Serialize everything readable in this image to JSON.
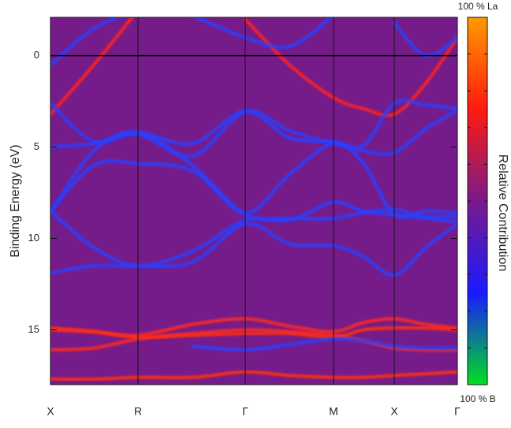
{
  "chart_data": {
    "type": "band-structure",
    "ylabel": "Binding Energy (eV)",
    "colorbar_label": "Relative Contribution",
    "colorbar_top_label": "100 % La",
    "colorbar_bottom_label": "100 % B",
    "colorbar_colors": [
      "#ff9a00",
      "#ff1a10",
      "#7a1a8a",
      "#1a1aff",
      "#00e020"
    ],
    "background": "#761c8a",
    "y_inverted": true,
    "ylim": [
      -2.1,
      18
    ],
    "yticks": [
      0,
      5,
      10,
      15
    ],
    "zero_line": true,
    "grid": "x",
    "xlim": [
      0,
      5.16
    ],
    "xticks": [
      {
        "value": 0,
        "label": "X"
      },
      {
        "value": 1.11,
        "label": "R"
      },
      {
        "value": 2.47,
        "label": "Γ"
      },
      {
        "value": 3.59,
        "label": "M"
      },
      {
        "value": 4.36,
        "label": "X"
      },
      {
        "value": 5.16,
        "label": "Γ"
      }
    ],
    "x": [
      0,
      0.55,
      1.11,
      1.8,
      2.47,
      3.03,
      3.59,
      3.97,
      4.36,
      4.76,
      5.16
    ],
    "series": [
      {
        "color": "#ff3010",
        "values": [
          17.7,
          17.7,
          17.6,
          17.6,
          17.3,
          17.5,
          17.6,
          17.6,
          17.5,
          17.4,
          17.3
        ]
      },
      {
        "color": "#ff3010",
        "values": [
          14.9,
          15.1,
          15.4,
          15.3,
          15.2,
          15.2,
          15.4,
          15.0,
          14.9,
          14.9,
          15.0
        ]
      },
      {
        "color": "#ff2a20",
        "values": [
          16.1,
          16.0,
          15.5,
          15.2,
          15.0,
          15.1,
          15.3,
          15.6,
          16.0,
          16.1,
          16.1
        ]
      },
      {
        "color": "#ff2a20",
        "values": [
          15.0,
          15.1,
          15.3,
          14.7,
          14.4,
          14.8,
          15.1,
          14.6,
          14.4,
          14.7,
          14.9
        ]
      },
      {
        "color": "#2a40ff",
        "values": [
          null,
          null,
          null,
          15.9,
          16.1,
          15.8,
          15.5,
          15.6,
          15.9,
          16.0,
          16.0
        ]
      },
      {
        "color": "#ff2020",
        "values": [
          3.2,
          0.5,
          -2.5,
          null,
          null,
          null,
          null,
          null,
          null,
          null,
          null
        ]
      },
      {
        "color": "#ff2020",
        "values": [
          null,
          null,
          null,
          null,
          -2.0,
          0.5,
          2.3,
          2.9,
          3.2,
          1.5,
          -1.0
        ]
      },
      {
        "color": "#2a40ff",
        "values": [
          2.6,
          4.7,
          4.2,
          4.8,
          3.0,
          4.1,
          4.8,
          5.2,
          5.3,
          4.0,
          3.0
        ]
      },
      {
        "color": "#2a40ff",
        "values": [
          5.0,
          4.8,
          4.3,
          5.5,
          3.1,
          4.5,
          4.7,
          4.9,
          2.6,
          2.7,
          2.9
        ]
      },
      {
        "color": "#2a40ff",
        "values": [
          8.5,
          6.0,
          5.9,
          6.3,
          8.6,
          6.5,
          4.8,
          5.9,
          8.7,
          8.5,
          8.6
        ]
      },
      {
        "color": "#2a40ff",
        "values": [
          8.5,
          10.5,
          11.5,
          10.7,
          9.0,
          9.0,
          8.0,
          8.5,
          8.4,
          8.8,
          8.8
        ]
      },
      {
        "color": "#2a40ff",
        "values": [
          11.9,
          11.5,
          11.5,
          11.3,
          9.2,
          10.3,
          10.4,
          11.0,
          12.0,
          10.5,
          9.2
        ]
      },
      {
        "color": "#2a40ff",
        "values": [
          8.6,
          5.2,
          4.2,
          6.0,
          8.7,
          8.9,
          8.9,
          8.6,
          8.7,
          8.9,
          9.1
        ]
      },
      {
        "color": "#2a40ff",
        "values": [
          0.5,
          -1.5,
          -2.5,
          null,
          null,
          null,
          null,
          null,
          null,
          null,
          null
        ]
      },
      {
        "color": "#2a40ff",
        "values": [
          null,
          null,
          null,
          -2.2,
          -1.0,
          -0.5,
          -2.2,
          null,
          -1.8,
          0.0,
          -1.0
        ]
      }
    ]
  }
}
